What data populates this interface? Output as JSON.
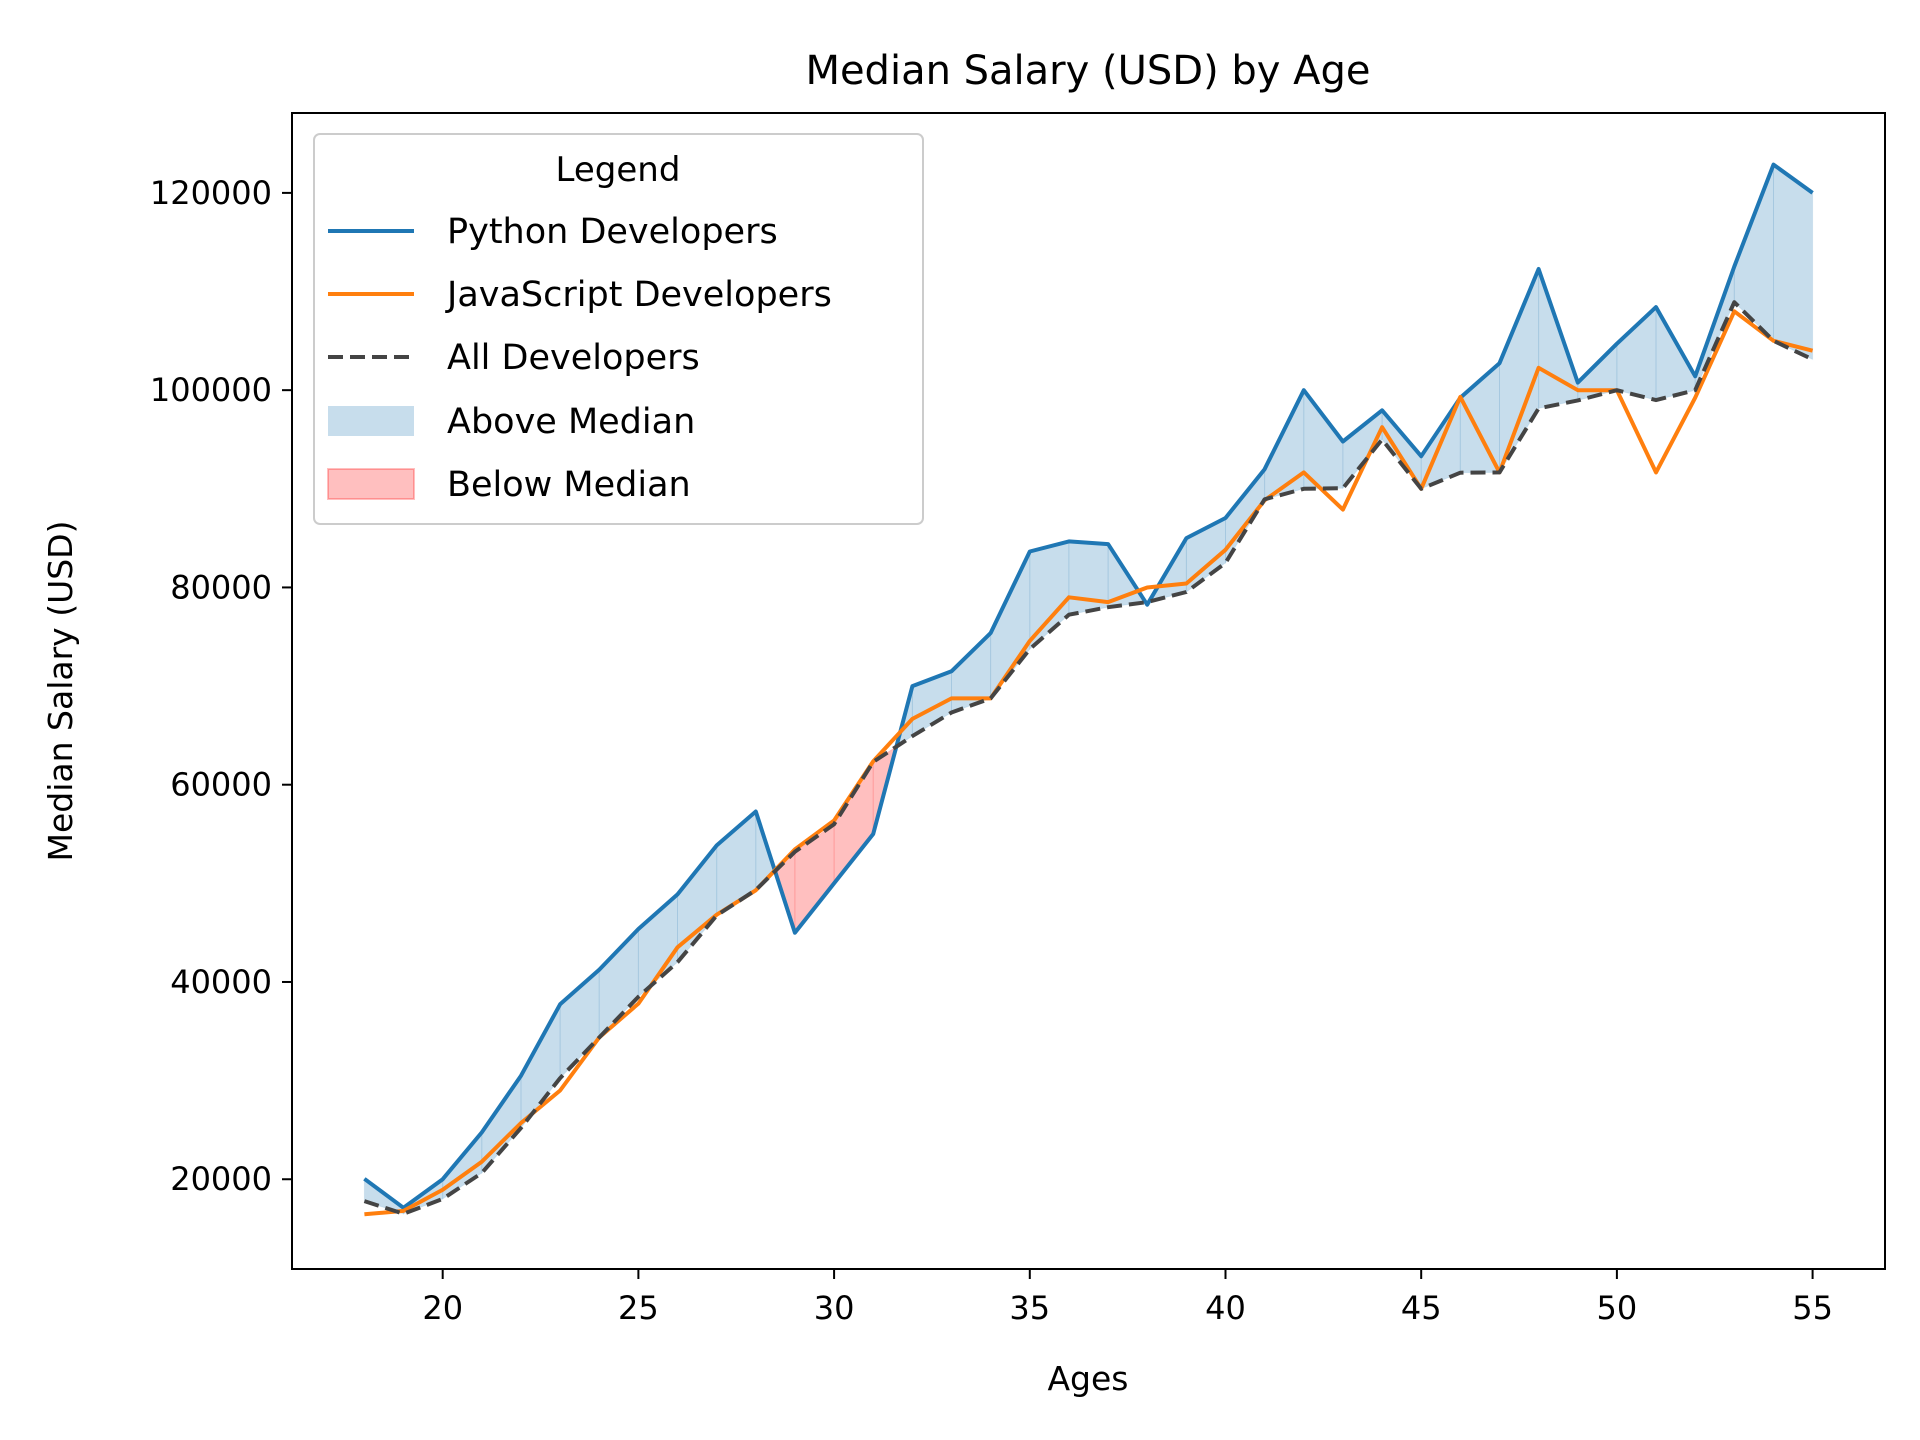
{
  "chart_data": {
    "type": "line",
    "title": "Median Salary (USD) by Age",
    "xlabel": "Ages",
    "ylabel": "Median Salary (USD)",
    "xlim": [
      16.15,
      56.85
    ],
    "ylim": [
      10900,
      128100
    ],
    "xticks": [
      20,
      25,
      30,
      35,
      40,
      45,
      50,
      55
    ],
    "yticks": [
      20000,
      40000,
      60000,
      80000,
      100000,
      120000
    ],
    "grid": false,
    "legend": {
      "title": "Legend",
      "placement": "upper left",
      "entries": [
        "Python Developers",
        "JavaScript Developers",
        "All Developers",
        "Above Median",
        "Below Median"
      ]
    },
    "x": [
      18,
      19,
      20,
      21,
      22,
      23,
      24,
      25,
      26,
      27,
      28,
      29,
      30,
      31,
      32,
      33,
      34,
      35,
      36,
      37,
      38,
      39,
      40,
      41,
      42,
      43,
      44,
      45,
      46,
      47,
      48,
      49,
      50,
      51,
      52,
      53,
      54,
      55
    ],
    "series": [
      {
        "name": "Python Developers",
        "color": "#1f77b4",
        "style": "solid",
        "values": [
          20046,
          17100,
          20000,
          24744,
          30500,
          37732,
          41247,
          45372,
          48876,
          53850,
          57287,
          45000,
          50000,
          55000,
          70000,
          71496,
          75370,
          83640,
          84666,
          84392,
          78254,
          85000,
          87038,
          91991,
          100000,
          94796,
          97962,
          93302,
          99240,
          102736,
          112285,
          100771,
          104708,
          108423,
          101407,
          112542,
          122870,
          120000
        ]
      },
      {
        "name": "JavaScript Developers",
        "color": "#ff7f0e",
        "style": "solid",
        "values": [
          16446,
          16791,
          18942,
          21780,
          25704,
          29000,
          34372,
          37810,
          43515,
          46823,
          49293,
          53437,
          56373,
          62375,
          66674,
          68745,
          68746,
          74583,
          79000,
          78508,
          79996,
          80403,
          83820,
          88833,
          91660,
          87892,
          96243,
          90000,
          99313,
          91660,
          102264,
          100000,
          100000,
          91660,
          99240,
          108000,
          105000,
          104000
        ]
      },
      {
        "name": "All Developers",
        "color": "#444444",
        "style": "dashed",
        "values": [
          17784,
          16500,
          18012,
          20628,
          25206,
          30252,
          34368,
          38496,
          42000,
          46752,
          49320,
          53200,
          56000,
          62316,
          64928,
          67317,
          68748,
          73752,
          77232,
          78000,
          78508,
          79536,
          82488,
          88935,
          90000,
          90056,
          95000,
          90000,
          91633,
          91660,
          98150,
          98964,
          100000,
          98988,
          100000,
          108923,
          105000,
          103117
        ]
      }
    ],
    "fills": [
      {
        "name": "Above Median",
        "series": "Python Developers",
        "baseline": "All Developers",
        "where": "above",
        "color": "#1f77b4",
        "alpha": 0.25
      },
      {
        "name": "Below Median",
        "series": "Python Developers",
        "baseline": "All Developers",
        "where": "below",
        "color": "#ff0000",
        "alpha": 0.25
      }
    ]
  }
}
